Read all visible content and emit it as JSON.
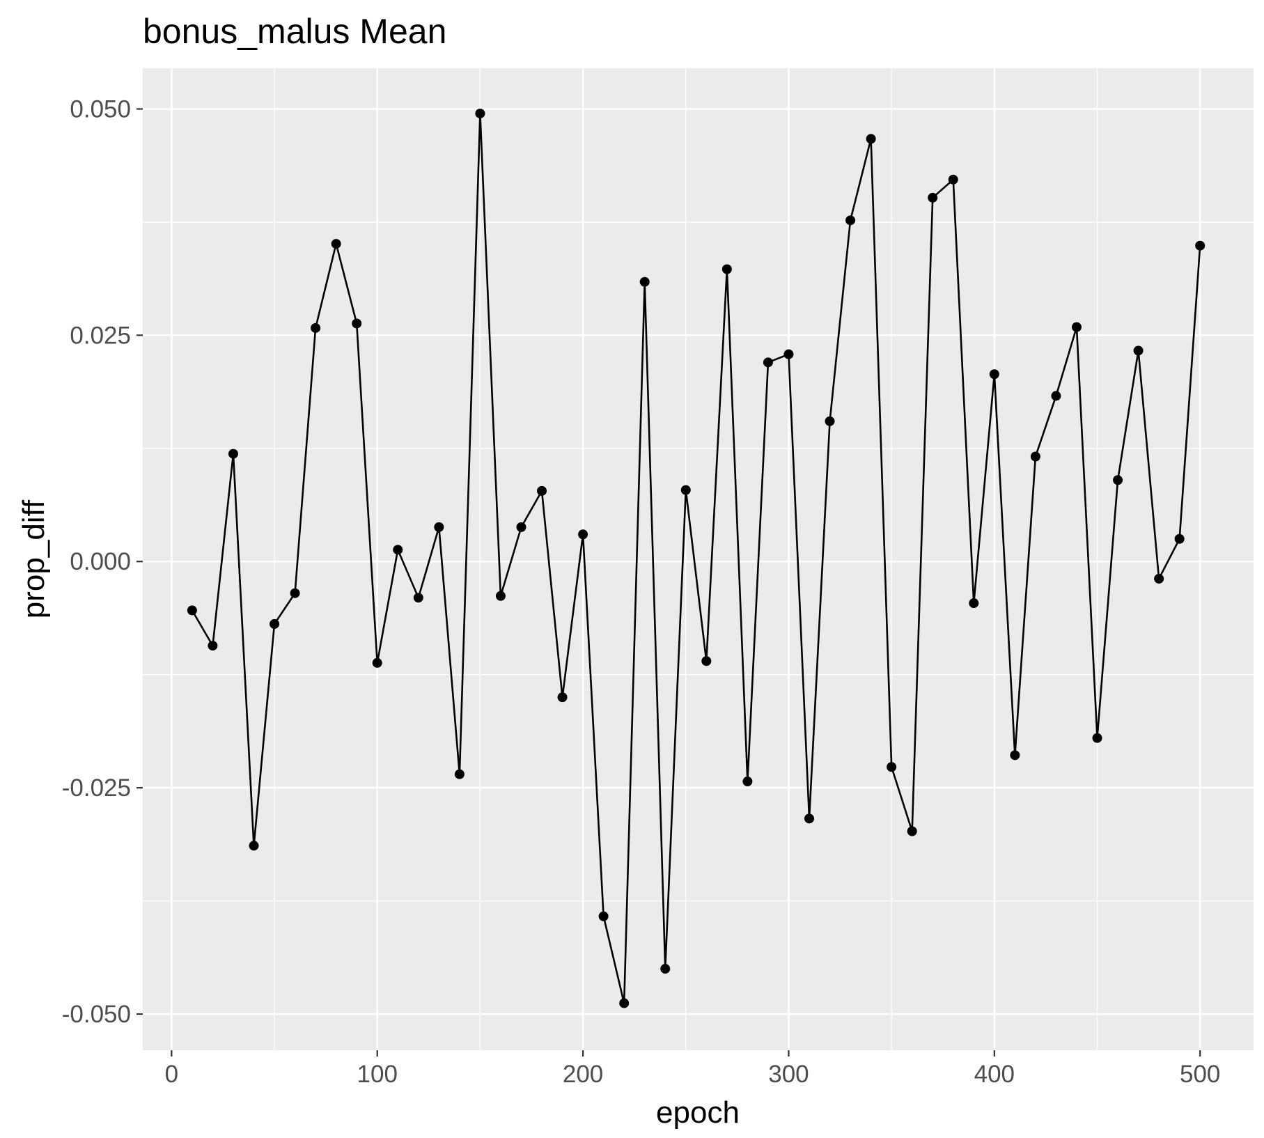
{
  "chart_data": {
    "type": "line",
    "title": "bonus_malus Mean",
    "xlabel": "epoch",
    "ylabel": "prop_diff",
    "xlim": [
      -14,
      526
    ],
    "ylim": [
      -0.054,
      0.0545
    ],
    "x_ticks": [
      0,
      100,
      200,
      300,
      400,
      500
    ],
    "x_tick_labels": [
      "0",
      "100",
      "200",
      "300",
      "400",
      "500"
    ],
    "y_ticks": [
      -0.05,
      -0.025,
      0,
      0.025,
      0.05
    ],
    "y_tick_labels": [
      "-0.050",
      "-0.025",
      "0.000",
      "0.025",
      "0.050"
    ],
    "grid": true,
    "legend": "none",
    "markers": true,
    "colors": {
      "panel_background": "#ebebeb",
      "grid_line": "#ffffff",
      "series": "#000000",
      "tick_label": "#4d4d4d",
      "tick_mark": "#333333"
    },
    "series": [
      {
        "x": [
          10,
          20,
          30,
          40,
          50,
          60,
          70,
          80,
          90,
          100,
          110,
          120,
          130,
          140,
          150,
          160,
          170,
          180,
          190,
          200,
          210,
          220,
          230,
          240,
          250,
          260,
          270,
          280,
          290,
          300,
          310,
          320,
          330,
          340,
          350,
          360,
          370,
          380,
          390,
          400,
          410,
          420,
          430,
          440,
          450,
          460,
          470,
          480,
          490,
          500
        ],
        "values": [
          -0.0054,
          -0.0093,
          0.0119,
          -0.0314,
          -0.0069,
          -0.0035,
          0.0258,
          0.0351,
          0.0263,
          -0.0112,
          0.0013,
          -0.004,
          0.0038,
          -0.0235,
          0.0495,
          -0.0038,
          0.0038,
          0.0078,
          -0.015,
          0.003,
          -0.0392,
          -0.0488,
          0.0309,
          -0.045,
          0.0079,
          -0.011,
          0.0323,
          -0.0243,
          0.022,
          0.0229,
          -0.0284,
          0.0155,
          0.0377,
          0.0467,
          -0.0227,
          -0.0298,
          0.0402,
          0.0422,
          -0.0046,
          0.0207,
          -0.0214,
          0.0116,
          0.0183,
          0.0259,
          -0.0195,
          0.009,
          0.0233,
          -0.0019,
          0.0025,
          0.0349
        ]
      }
    ]
  }
}
